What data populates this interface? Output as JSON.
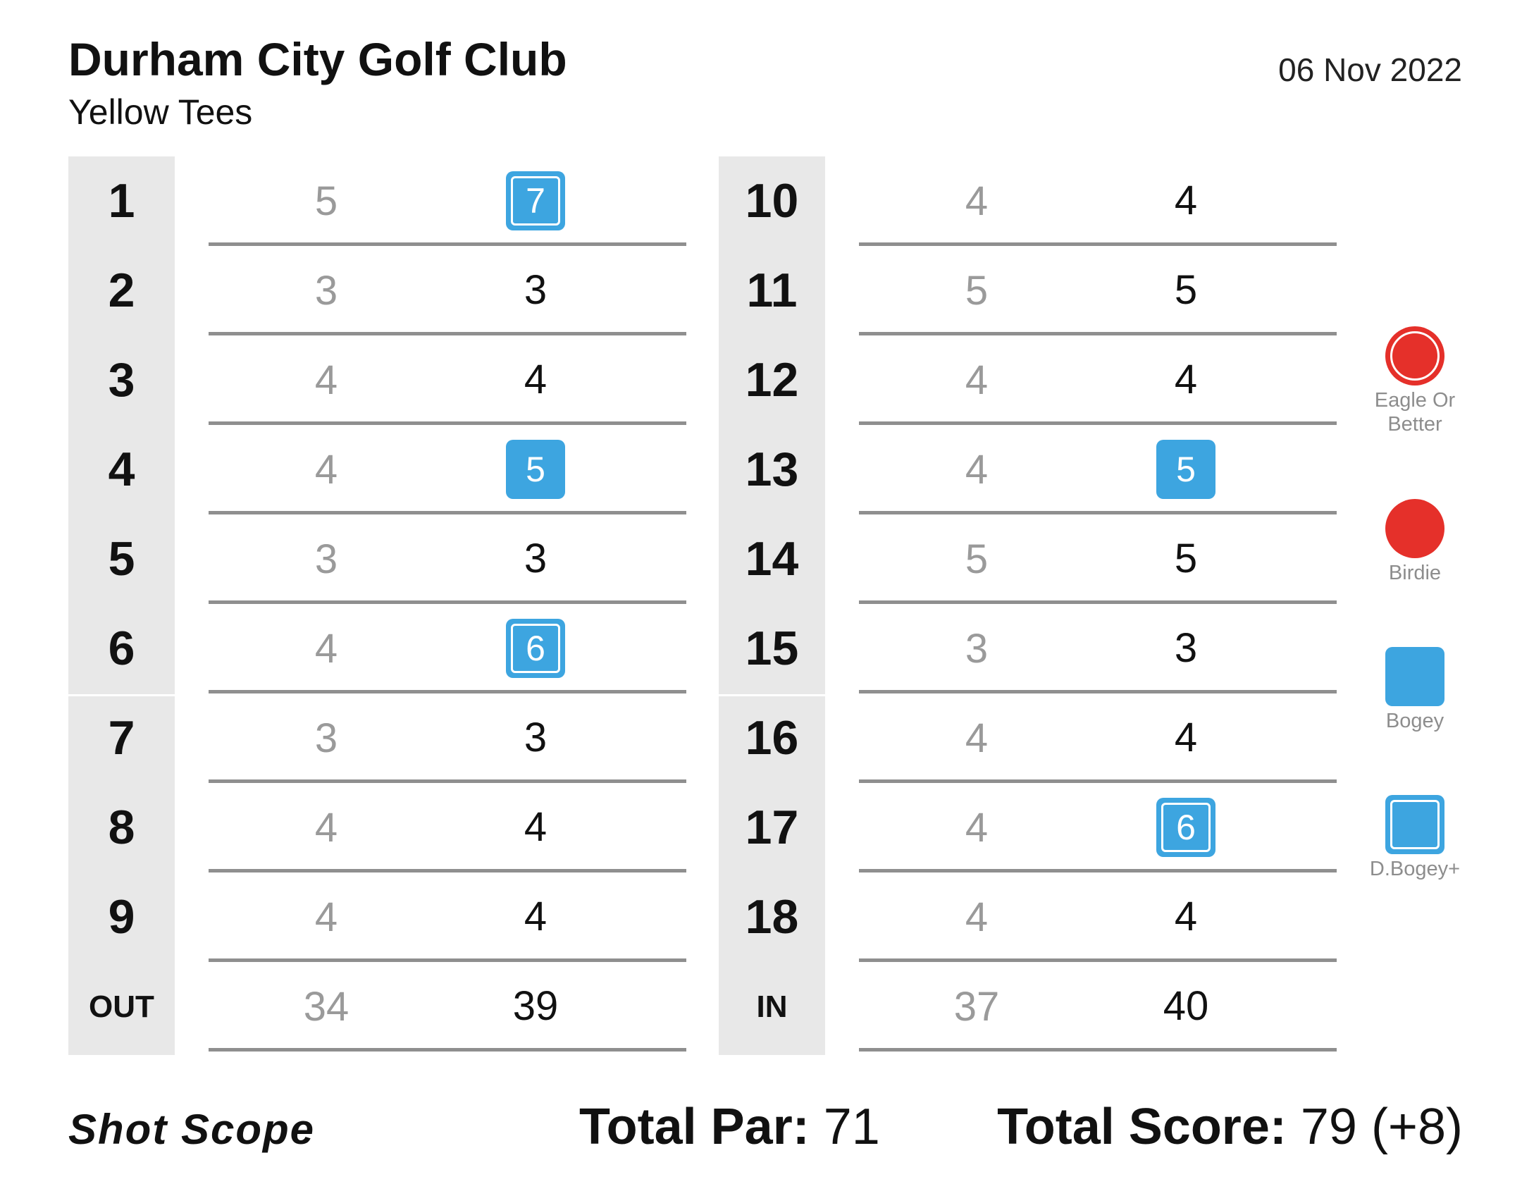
{
  "header": {
    "club_name": "Durham City Golf Club",
    "tees": "Yellow Tees",
    "date": "06 Nov 2022"
  },
  "front_nine": [
    {
      "hole": "1",
      "par": "5",
      "score": "7",
      "result": "dbogey"
    },
    {
      "hole": "2",
      "par": "3",
      "score": "3",
      "result": "par"
    },
    {
      "hole": "3",
      "par": "4",
      "score": "4",
      "result": "par"
    },
    {
      "hole": "4",
      "par": "4",
      "score": "5",
      "result": "bogey"
    },
    {
      "hole": "5",
      "par": "3",
      "score": "3",
      "result": "par"
    },
    {
      "hole": "6",
      "par": "4",
      "score": "6",
      "result": "dbogey"
    },
    {
      "hole": "7",
      "par": "3",
      "score": "3",
      "result": "par"
    },
    {
      "hole": "8",
      "par": "4",
      "score": "4",
      "result": "par"
    },
    {
      "hole": "9",
      "par": "4",
      "score": "4",
      "result": "par"
    }
  ],
  "back_nine": [
    {
      "hole": "10",
      "par": "4",
      "score": "4",
      "result": "par"
    },
    {
      "hole": "11",
      "par": "5",
      "score": "5",
      "result": "par"
    },
    {
      "hole": "12",
      "par": "4",
      "score": "4",
      "result": "par"
    },
    {
      "hole": "13",
      "par": "4",
      "score": "5",
      "result": "bogey"
    },
    {
      "hole": "14",
      "par": "5",
      "score": "5",
      "result": "par"
    },
    {
      "hole": "15",
      "par": "3",
      "score": "3",
      "result": "par"
    },
    {
      "hole": "16",
      "par": "4",
      "score": "4",
      "result": "par"
    },
    {
      "hole": "17",
      "par": "4",
      "score": "6",
      "result": "dbogey"
    },
    {
      "hole": "18",
      "par": "4",
      "score": "4",
      "result": "par"
    }
  ],
  "out_total": {
    "label": "OUT",
    "par": "34",
    "score": "39"
  },
  "in_total": {
    "label": "IN",
    "par": "37",
    "score": "40"
  },
  "legend": [
    {
      "label": "Eagle Or Better",
      "icon": "eagle-double-circle-icon",
      "color": "#e5302a"
    },
    {
      "label": "Birdie",
      "icon": "birdie-circle-icon",
      "color": "#e5302a"
    },
    {
      "label": "Bogey",
      "icon": "bogey-square-icon",
      "color": "#3da5e0"
    },
    {
      "label": "D.Bogey+",
      "icon": "double-bogey-square-icon",
      "color": "#3da5e0"
    }
  ],
  "footer": {
    "brand": "Shot Scope",
    "total_par_label": "Total Par:",
    "total_par_value": "71",
    "total_score_label": "Total Score:",
    "total_score_value": "79 (+8)"
  },
  "colors": {
    "bogey_blue": "#3da5e0",
    "birdie_red": "#e5302a",
    "hole_column_bg": "#e8e8e8",
    "par_text": "#9a9a9a"
  }
}
